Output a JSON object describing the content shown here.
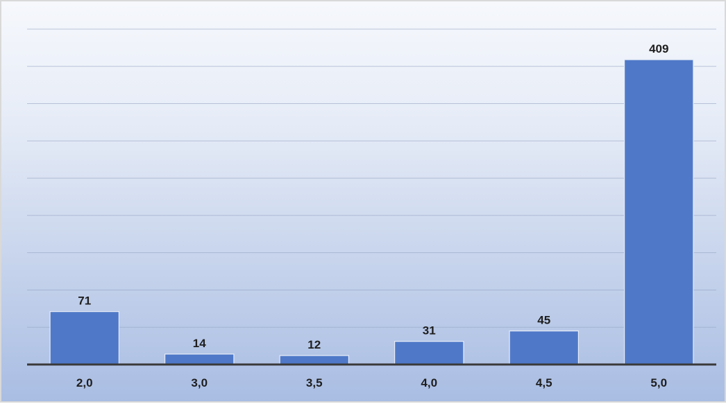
{
  "chart_data": {
    "type": "bar",
    "title": "",
    "xlabel": "",
    "ylabel": "",
    "categories": [
      "2,0",
      "3,0",
      "3,5",
      "4,0",
      "4,5",
      "5,0"
    ],
    "values": [
      71,
      14,
      12,
      31,
      45,
      409
    ],
    "data_labels": [
      "71",
      "14",
      "12",
      "31",
      "45",
      "409"
    ],
    "ylim": [
      0,
      450
    ],
    "grid": true,
    "legend": "none",
    "bar_color": "#4f79c8"
  }
}
